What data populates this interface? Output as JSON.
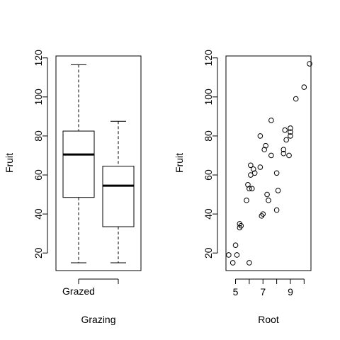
{
  "chart_data": [
    {
      "type": "box",
      "xlabel": "Grazing",
      "ylabel": "Fruit",
      "ylim": [
        11,
        121
      ],
      "y_ticks": [
        20,
        40,
        60,
        80,
        100,
        120
      ],
      "x_tick_labels": [
        "Grazed",
        ""
      ],
      "boxes": [
        {
          "group": "Grazed",
          "whisker_low": 15,
          "q1": 48.5,
          "median": 70.5,
          "q3": 82.5,
          "whisker_high": 116.5
        },
        {
          "group": "",
          "whisker_low": 15,
          "q1": 33.5,
          "median": 54.5,
          "q3": 64.5,
          "whisker_high": 87.5
        }
      ]
    },
    {
      "type": "scatter",
      "xlabel": "Root",
      "ylabel": "Fruit",
      "xlim": [
        4.3,
        10.5
      ],
      "ylim": [
        11,
        121
      ],
      "x_ticks": [
        5,
        7,
        9
      ],
      "y_ticks": [
        20,
        40,
        60,
        80,
        100,
        120
      ],
      "points": [
        [
          4.5,
          19
        ],
        [
          4.8,
          15
        ],
        [
          5.0,
          24
        ],
        [
          5.1,
          19
        ],
        [
          5.3,
          35
        ],
        [
          5.3,
          33
        ],
        [
          5.4,
          34
        ],
        [
          5.8,
          47
        ],
        [
          5.9,
          55
        ],
        [
          6.0,
          53
        ],
        [
          6.0,
          15
        ],
        [
          6.1,
          60
        ],
        [
          6.1,
          65
        ],
        [
          6.2,
          53
        ],
        [
          6.3,
          63
        ],
        [
          6.4,
          61
        ],
        [
          6.8,
          64
        ],
        [
          6.8,
          80
        ],
        [
          6.9,
          39
        ],
        [
          7.0,
          40
        ],
        [
          7.1,
          73
        ],
        [
          7.2,
          75
        ],
        [
          7.3,
          50
        ],
        [
          7.4,
          47
        ],
        [
          7.6,
          70
        ],
        [
          7.6,
          88
        ],
        [
          8.0,
          61
        ],
        [
          8.0,
          42
        ],
        [
          8.1,
          52
        ],
        [
          8.5,
          73
        ],
        [
          8.5,
          71
        ],
        [
          8.6,
          83
        ],
        [
          8.7,
          78
        ],
        [
          8.9,
          70
        ],
        [
          9.0,
          80
        ],
        [
          9.0,
          84
        ],
        [
          9.0,
          82
        ],
        [
          9.4,
          99
        ],
        [
          10.0,
          105
        ],
        [
          10.4,
          117
        ]
      ]
    }
  ]
}
